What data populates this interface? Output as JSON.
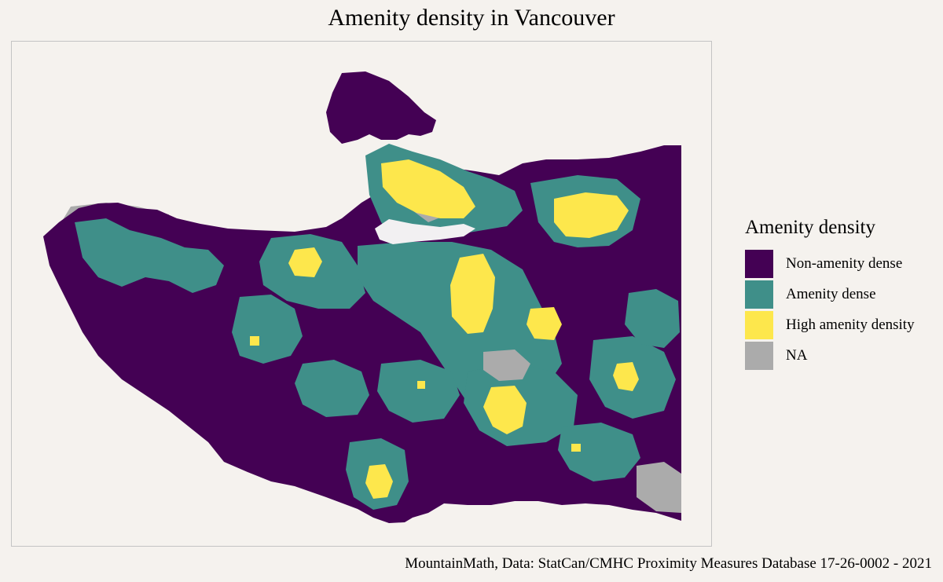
{
  "title": "Amenity density in Vancouver",
  "caption": "MountainMath, Data: StatCan/CMHC Proximity Measures Database 17-26-0002 - 2021",
  "legend": {
    "title": "Amenity density",
    "items": [
      {
        "label": "Non-amenity dense",
        "color": "#440154"
      },
      {
        "label": "Amenity dense",
        "color": "#3f8f89"
      },
      {
        "label": "High amenity density",
        "color": "#fde74c"
      },
      {
        "label": "NA",
        "color": "#ababab"
      }
    ]
  },
  "colors": {
    "background": "#f5f2ee",
    "water_inlet": "#f2f0f2"
  }
}
